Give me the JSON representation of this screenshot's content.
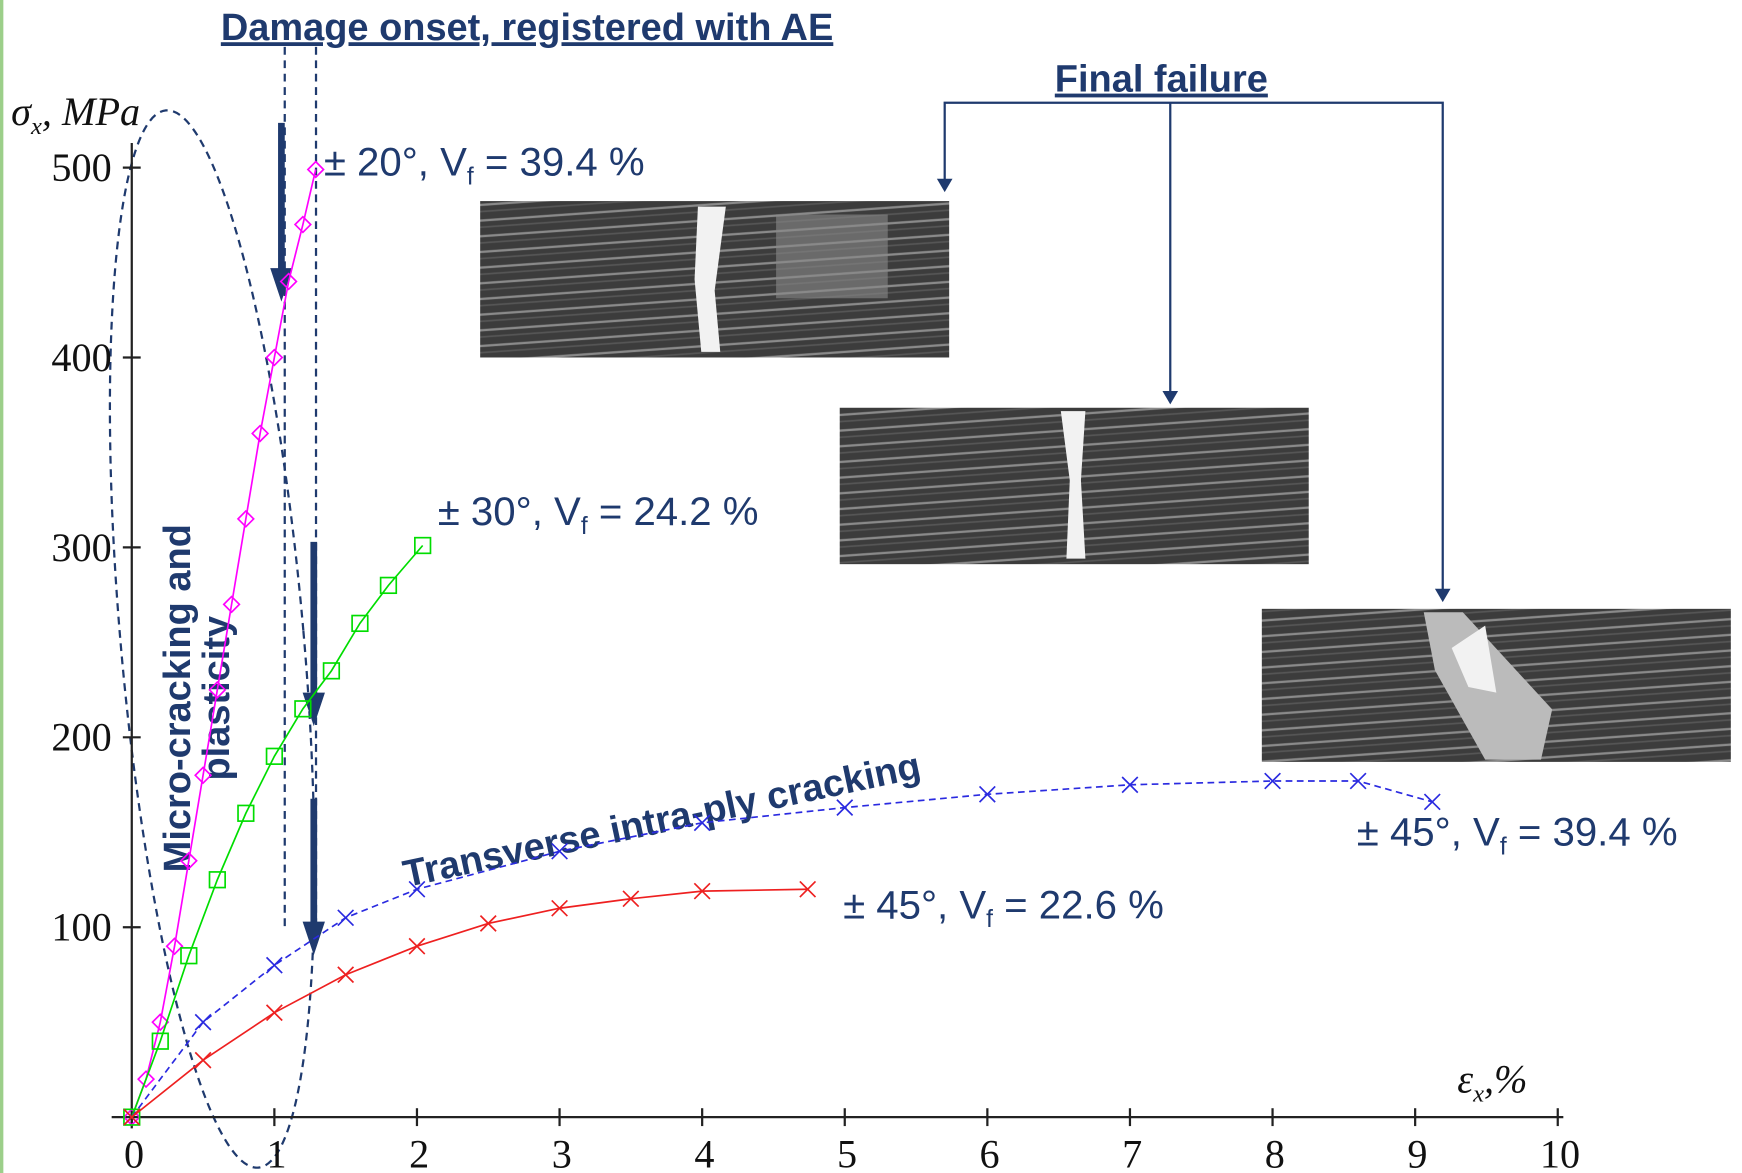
{
  "chart_data": {
    "type": "line",
    "y_label": "σx, MPa",
    "x_label": "εx,%",
    "xlim": [
      0,
      10
    ],
    "ylim": [
      0,
      510
    ],
    "xticks": [
      0,
      1,
      2,
      3,
      4,
      5,
      6,
      7,
      8,
      9,
      10
    ],
    "yticks": [
      100,
      200,
      300,
      400,
      500
    ],
    "annotations": {
      "damage_onset": "Damage onset, registered with AE",
      "final_failure": "Final failure",
      "micro_cracking": [
        "Micro-cracking and",
        "plasticity"
      ],
      "transverse": "Transverse intra-ply cracking"
    },
    "series": [
      {
        "name": "± 20°, Vf = 39.4 %",
        "color": "#ff00ff",
        "marker": "diamond",
        "x": [
          0,
          0.1,
          0.2,
          0.3,
          0.4,
          0.5,
          0.6,
          0.7,
          0.8,
          0.9,
          1.0,
          1.1,
          1.2,
          1.29
        ],
        "values": [
          0,
          20,
          50,
          90,
          135,
          180,
          225,
          270,
          315,
          360,
          400,
          440,
          470,
          499
        ]
      },
      {
        "name": "± 30°, Vf = 24.2 %",
        "color": "#00dd00",
        "marker": "square",
        "x": [
          0,
          0.2,
          0.4,
          0.6,
          0.8,
          1.0,
          1.2,
          1.4,
          1.6,
          1.8,
          2.04
        ],
        "values": [
          0,
          40,
          85,
          125,
          160,
          190,
          215,
          235,
          260,
          280,
          301
        ]
      },
      {
        "name": "± 45°, Vf = 39.4 %",
        "color": "#2a2ae0",
        "marker": "x",
        "x": [
          0,
          0.5,
          1,
          1.5,
          2,
          3,
          4,
          5,
          6,
          7,
          8,
          8.6,
          9.12
        ],
        "values": [
          0,
          50,
          80,
          105,
          120,
          140,
          155,
          163,
          170,
          175,
          177,
          177,
          166
        ]
      },
      {
        "name": "± 45°, Vf = 22.6 %",
        "color": "#ee2020",
        "marker": "x",
        "x": [
          0,
          0.5,
          1,
          1.5,
          2,
          2.5,
          3,
          3.5,
          4,
          4.74
        ],
        "values": [
          0,
          30,
          55,
          75,
          90,
          102,
          110,
          115,
          119,
          120
        ]
      }
    ]
  }
}
